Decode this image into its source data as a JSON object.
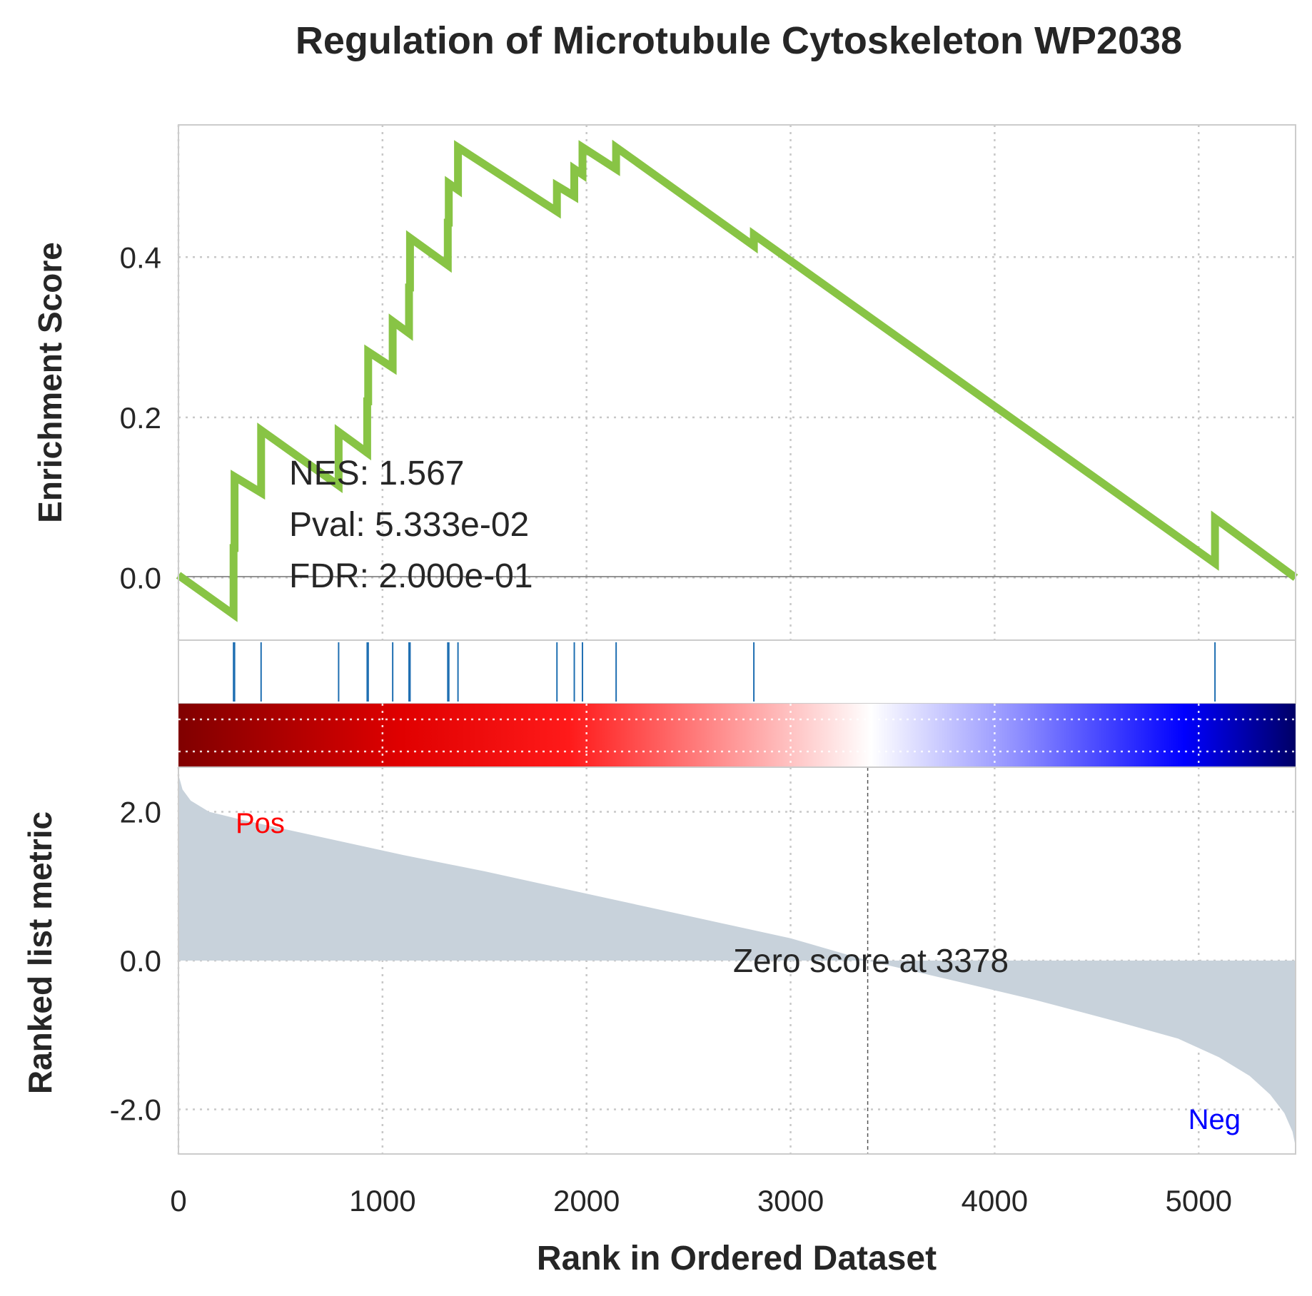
{
  "chart_data": [
    {
      "panel": "enrichment",
      "type": "line",
      "title": "Regulation of Microtubule Cytoskeleton WP2038",
      "ylabel": "Enrichment Score",
      "xlim": [
        0,
        5475
      ],
      "ylim": [
        -0.078,
        0.565
      ],
      "yticks": [
        0.0,
        0.2,
        0.4
      ],
      "ytick_labels": [
        "0.0",
        "0.2",
        "0.4"
      ],
      "grid": true,
      "line_color": "#88c445",
      "x": [
        0,
        270,
        270,
        275,
        275,
        405,
        405,
        785,
        785,
        925,
        925,
        930,
        930,
        1050,
        1050,
        1130,
        1130,
        1135,
        1135,
        1320,
        1320,
        1325,
        1325,
        1370,
        1370,
        1855,
        1855,
        1940,
        1940,
        1980,
        1980,
        2145,
        2145,
        2820,
        2820,
        5080,
        5080,
        5475
      ],
      "y": [
        0.003,
        -0.046,
        0.037,
        0.037,
        0.126,
        0.106,
        0.184,
        0.115,
        0.182,
        0.156,
        0.22,
        0.22,
        0.282,
        0.262,
        0.32,
        0.305,
        0.362,
        0.362,
        0.424,
        0.39,
        0.443,
        0.443,
        0.492,
        0.484,
        0.537,
        0.457,
        0.489,
        0.476,
        0.51,
        0.503,
        0.537,
        0.51,
        0.537,
        0.414,
        0.428,
        0.018,
        0.074,
        0.0
      ],
      "annotations": [
        "NES: 1.567",
        "Pval: 5.333e-02",
        "FDR: 2.000e-01"
      ]
    },
    {
      "panel": "hits",
      "type": "scatter",
      "description_marks": "vertical gene-set hit lines",
      "x": [
        270,
        275,
        405,
        785,
        925,
        930,
        1050,
        1130,
        1135,
        1320,
        1325,
        1370,
        1855,
        1940,
        1980,
        2145,
        2820,
        5080
      ],
      "color": "#1f6fb2"
    },
    {
      "panel": "heatmap",
      "type": "heatmap",
      "colormap": [
        "#800000",
        "#ff0000",
        "#ffffff",
        "#0000ff",
        "#000080"
      ]
    },
    {
      "panel": "ranked",
      "type": "area",
      "ylabel": "Ranked list metric",
      "xlabel": "Rank in Ordered Dataset",
      "xlim": [
        0,
        5475
      ],
      "ylim": [
        -2.6,
        2.6
      ],
      "xticks": [
        0,
        1000,
        2000,
        3000,
        4000,
        5000
      ],
      "xtick_labels": [
        "0",
        "1000",
        "2000",
        "3000",
        "4000",
        "5000"
      ],
      "yticks": [
        2.0,
        0.0,
        -2.0
      ],
      "ytick_labels": [
        "2.0",
        "0.0",
        "-2.0"
      ],
      "x": [
        0,
        20,
        60,
        150,
        300,
        500,
        800,
        1100,
        1500,
        2000,
        2500,
        3000,
        3378,
        3800,
        4200,
        4600,
        4900,
        5100,
        5250,
        5350,
        5420,
        5460,
        5475
      ],
      "y": [
        2.5,
        2.3,
        2.15,
        2.0,
        1.9,
        1.78,
        1.6,
        1.42,
        1.2,
        0.9,
        0.6,
        0.3,
        0.0,
        -0.27,
        -0.53,
        -0.82,
        -1.05,
        -1.3,
        -1.55,
        -1.8,
        -2.05,
        -2.3,
        -2.5
      ],
      "fill_color": "#c8d2db",
      "zero_cross": 3378,
      "zero_label": "Zero score at 3378",
      "pos_label": "Pos",
      "neg_label": "Neg",
      "pos_color": "#ff0000",
      "neg_color": "#0000ff"
    }
  ]
}
